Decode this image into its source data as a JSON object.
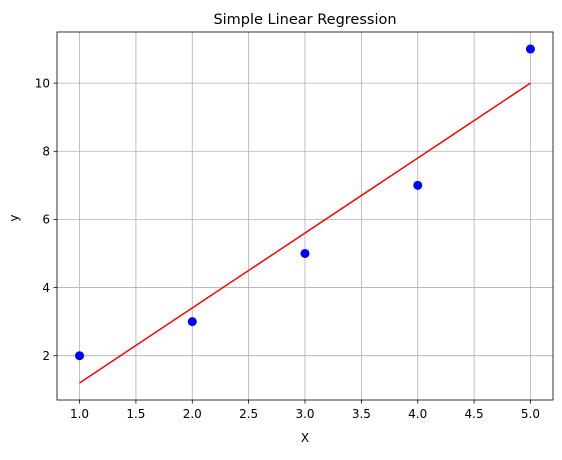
{
  "chart_data": {
    "type": "scatter",
    "title": "Simple Linear Regression",
    "xlabel": "X",
    "ylabel": "y",
    "xlim": [
      0.8,
      5.2
    ],
    "ylim": [
      0.7,
      11.5
    ],
    "xticks": [
      1.0,
      1.5,
      2.0,
      2.5,
      3.0,
      3.5,
      4.0,
      4.5,
      5.0
    ],
    "xtick_labels": [
      "1.0",
      "1.5",
      "2.0",
      "2.5",
      "3.0",
      "3.5",
      "4.0",
      "4.5",
      "5.0"
    ],
    "yticks": [
      2,
      4,
      6,
      8,
      10
    ],
    "ytick_labels": [
      "2",
      "4",
      "6",
      "8",
      "10"
    ],
    "grid": true,
    "series": [
      {
        "kind": "scatter",
        "color": "#0000ff",
        "points": [
          {
            "x": 1,
            "y": 2
          },
          {
            "x": 2,
            "y": 3
          },
          {
            "x": 3,
            "y": 5
          },
          {
            "x": 4,
            "y": 7
          },
          {
            "x": 5,
            "y": 11
          }
        ]
      },
      {
        "kind": "line",
        "color": "#ff0000",
        "points": [
          {
            "x": 1,
            "y": 1.2
          },
          {
            "x": 5,
            "y": 10.0
          }
        ]
      }
    ]
  }
}
